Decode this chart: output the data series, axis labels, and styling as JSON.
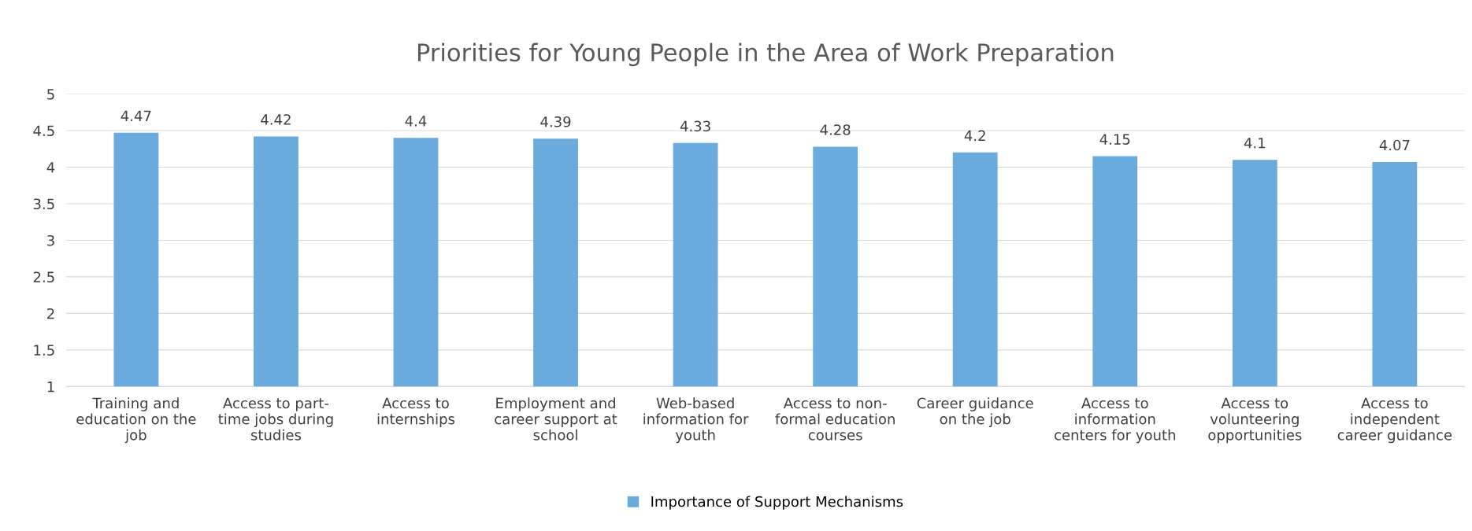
{
  "chart_data": {
    "type": "bar",
    "title": "Priorities for Young People in the Area of Work Preparation",
    "categories": [
      "Training and\neducation on the\njob",
      "Access to part-\ntime jobs during\nstudies",
      "Access to\ninternships",
      "Employment and\ncareer support at\nschool",
      "Web-based\ninformation for\nyouth",
      "Access to non-\nformal education\ncourses",
      "Career guidance\non the job",
      "Access to\ninformation\ncenters for youth",
      "Access to\nvolunteering\nopportunities",
      "Access to\nindependent\ncareer guidance"
    ],
    "series": [
      {
        "name": "Importance of Support Mechanisms",
        "color": "#6aaadc",
        "values": [
          4.47,
          4.42,
          4.4,
          4.39,
          4.33,
          4.28,
          4.2,
          4.15,
          4.1,
          4.07
        ]
      }
    ],
    "ylim": [
      1,
      5
    ],
    "yticks": [
      1,
      1.5,
      2,
      2.5,
      3,
      3.5,
      4,
      4.5,
      5
    ],
    "grid": "y",
    "legend": "bottom",
    "data_labels": true
  }
}
